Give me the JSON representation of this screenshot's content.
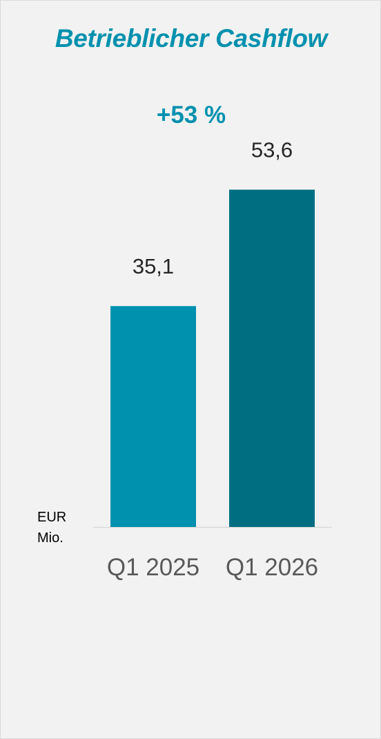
{
  "title": "Betrieblicher Cashflow",
  "growth": "+53 %",
  "unit_line1": "EUR",
  "unit_line2": "Mio.",
  "colors": {
    "title": "#0091ae",
    "bar_q1_2025": "#0091ae",
    "bar_q1_2026": "#006e81",
    "axis": "#d9d9d9"
  },
  "chart_data": {
    "type": "bar",
    "categories": [
      "Q1 2025",
      "Q1 2026"
    ],
    "values": [
      35.1,
      53.6
    ],
    "value_labels": [
      "35,1",
      "53,6"
    ],
    "title": "Betrieblicher Cashflow",
    "xlabel": "",
    "ylabel": "EUR Mio.",
    "ylim": [
      0,
      54
    ],
    "grid": false,
    "legend": "none"
  }
}
